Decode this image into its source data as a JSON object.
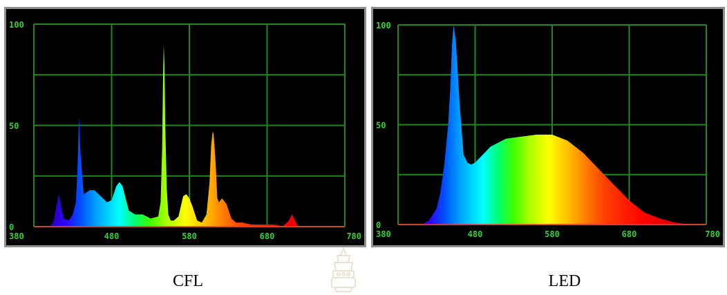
{
  "colors": {
    "panel_background": "#000000",
    "grid": "#1e8a1e",
    "tick_label": "#2fd22f",
    "axis_line": "#ff3030"
  },
  "chart_data": [
    {
      "type": "area",
      "caption": "CFL",
      "xlim": [
        380,
        780
      ],
      "ylim": [
        0,
        100
      ],
      "xticks": [
        380,
        480,
        580,
        680,
        780
      ],
      "yticks": [
        0,
        50,
        100
      ],
      "grid": true,
      "fill": "spectral rainbow by wavelength",
      "x": [
        380,
        400,
        405,
        408,
        412,
        418,
        425,
        430,
        434,
        436,
        438,
        440,
        444,
        448,
        452,
        458,
        466,
        474,
        480,
        486,
        490,
        494,
        498,
        502,
        506,
        510,
        520,
        530,
        540,
        543,
        545,
        546,
        547,
        548,
        549,
        551,
        553,
        556,
        560,
        566,
        572,
        576,
        580,
        584,
        590,
        596,
        602,
        606,
        608,
        610,
        611,
        612,
        614,
        616,
        618,
        622,
        628,
        634,
        640,
        648,
        660,
        672,
        680,
        690,
        700,
        708,
        712,
        716,
        720,
        726,
        740,
        760,
        780
      ],
      "values": [
        0,
        0,
        2,
        8,
        16,
        4,
        3,
        6,
        12,
        28,
        54,
        36,
        16,
        17,
        18,
        18,
        15,
        12,
        13,
        20,
        22,
        20,
        14,
        8,
        7,
        6,
        6,
        4,
        5,
        12,
        38,
        70,
        90,
        80,
        50,
        18,
        6,
        3,
        3,
        5,
        15,
        16,
        14,
        10,
        3,
        2,
        6,
        22,
        40,
        47,
        46,
        42,
        30,
        14,
        12,
        14,
        11,
        4,
        2,
        2,
        1,
        1,
        1,
        1,
        0,
        3,
        6,
        3,
        0,
        0,
        0,
        0,
        0
      ]
    },
    {
      "type": "area",
      "caption": "LED",
      "xlim": [
        380,
        780
      ],
      "ylim": [
        0,
        100
      ],
      "xticks": [
        380,
        480,
        580,
        680,
        780
      ],
      "yticks": [
        0,
        50,
        100
      ],
      "grid": true,
      "fill": "spectral rainbow by wavelength",
      "x": [
        380,
        410,
        420,
        430,
        435,
        440,
        445,
        448,
        450,
        452,
        455,
        460,
        465,
        470,
        475,
        480,
        490,
        500,
        520,
        540,
        560,
        580,
        600,
        620,
        640,
        660,
        680,
        700,
        720,
        740,
        760,
        780
      ],
      "values": [
        0,
        0,
        2,
        8,
        16,
        30,
        50,
        70,
        90,
        100,
        92,
        60,
        35,
        31,
        30,
        31,
        35,
        39,
        43,
        44,
        45,
        45,
        42,
        36,
        28,
        20,
        12,
        6,
        3,
        1,
        0,
        0
      ]
    }
  ]
}
